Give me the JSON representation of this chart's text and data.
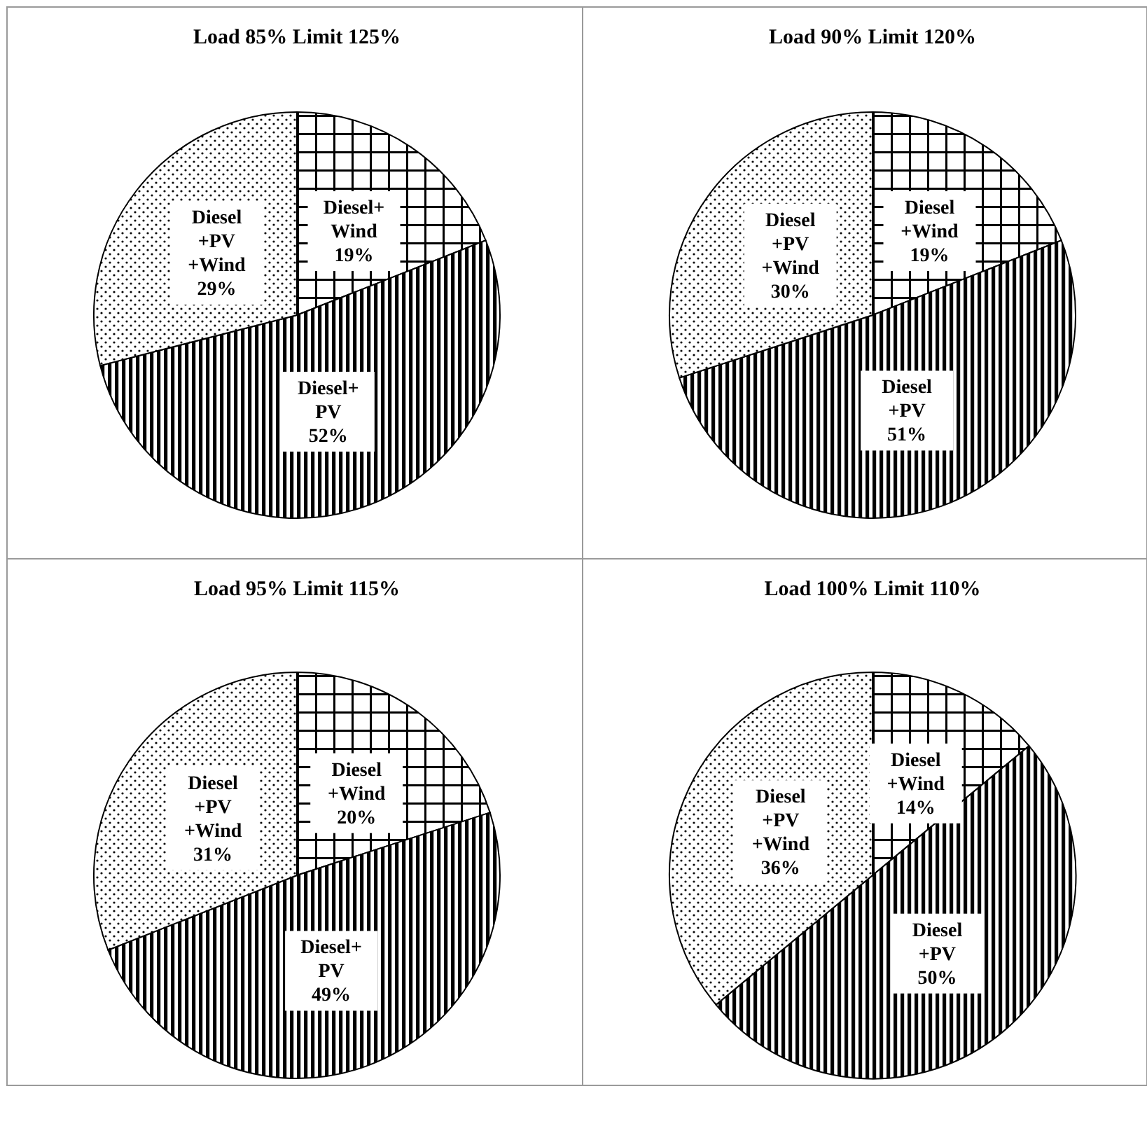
{
  "chart_data": [
    {
      "type": "pie",
      "title": "Load 85% Limit 125%",
      "categories": [
        "Diesel+\nWind",
        "Diesel+\nPV",
        "Diesel\n+PV\n+Wind"
      ],
      "values": [
        19,
        52,
        29
      ],
      "value_labels": [
        "19%",
        "52%",
        "29%"
      ],
      "colors": [
        "#000000",
        "#000000",
        "#000000"
      ]
    },
    {
      "type": "pie",
      "title": "Load 90% Limit 120%",
      "categories": [
        "Diesel\n+Wind",
        "Diesel\n+PV",
        "Diesel\n+PV\n+Wind"
      ],
      "values": [
        19,
        51,
        30
      ],
      "value_labels": [
        "19%",
        "51%",
        "30%"
      ],
      "colors": [
        "#000000",
        "#000000",
        "#000000"
      ]
    },
    {
      "type": "pie",
      "title": "Load 95% Limit 115%",
      "categories": [
        "Diesel\n+Wind",
        "Diesel+\nPV",
        "Diesel\n+PV\n+Wind"
      ],
      "values": [
        20,
        49,
        31
      ],
      "value_labels": [
        "20%",
        "49%",
        "31%"
      ],
      "colors": [
        "#000000",
        "#000000",
        "#000000"
      ]
    },
    {
      "type": "pie",
      "title": "Load 100% Limit 110%",
      "categories": [
        "Diesel\n+Wind",
        "Diesel\n+PV",
        "Diesel\n+PV\n+Wind"
      ],
      "values": [
        14,
        50,
        36
      ],
      "value_labels": [
        "14%",
        "50%",
        "36%"
      ],
      "colors": [
        "#000000",
        "#000000",
        "#000000"
      ]
    }
  ]
}
